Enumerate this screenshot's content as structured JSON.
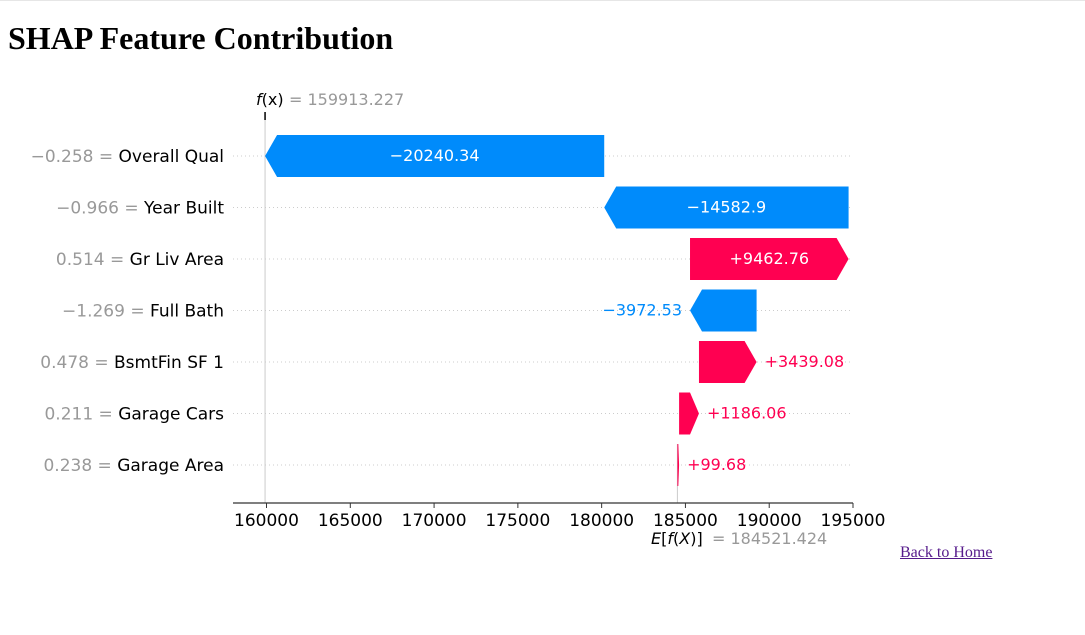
{
  "page": {
    "title": "SHAP Feature Contribution",
    "back_link": "Back to Home"
  },
  "chart_data": {
    "type": "waterfall",
    "title": "",
    "fx_label": "f(x)",
    "fx_value": 159913.227,
    "fx_value_text": "= 159913.227",
    "base_label": "E[f(X)]",
    "base_value": 184521.424,
    "base_value_text": "= 184521.424",
    "xlim": [
      158000,
      195000
    ],
    "xticks": [
      160000,
      165000,
      170000,
      175000,
      180000,
      185000,
      190000,
      195000
    ],
    "features": [
      {
        "value_text": "−0.258 =",
        "name": "Overall Qual",
        "shap": -20240.34,
        "label": "−20240.34",
        "label_inside": true
      },
      {
        "value_text": "−0.966 =",
        "name": "Year Built",
        "shap": -14582.9,
        "label": "−14582.9",
        "label_inside": true
      },
      {
        "value_text": "0.514 =",
        "name": "Gr Liv Area",
        "shap": 9462.76,
        "label": "+9462.76",
        "label_inside": true
      },
      {
        "value_text": "−1.269 =",
        "name": "Full Bath",
        "shap": -3972.53,
        "label": "−3972.53",
        "label_inside": false
      },
      {
        "value_text": "0.478 =",
        "name": "BsmtFin SF 1",
        "shap": 3439.08,
        "label": "+3439.08",
        "label_inside": false
      },
      {
        "value_text": "0.211 =",
        "name": "Garage Cars",
        "shap": 1186.06,
        "label": "+1186.06",
        "label_inside": false
      },
      {
        "value_text": "0.238 =",
        "name": "Garage Area",
        "shap": 99.68,
        "label": "+99.68",
        "label_inside": false
      }
    ],
    "colors": {
      "positive": "#ff0051",
      "negative": "#008bfb",
      "muted": "#999999",
      "axis": "#333333",
      "grid": "#cccccc"
    }
  }
}
